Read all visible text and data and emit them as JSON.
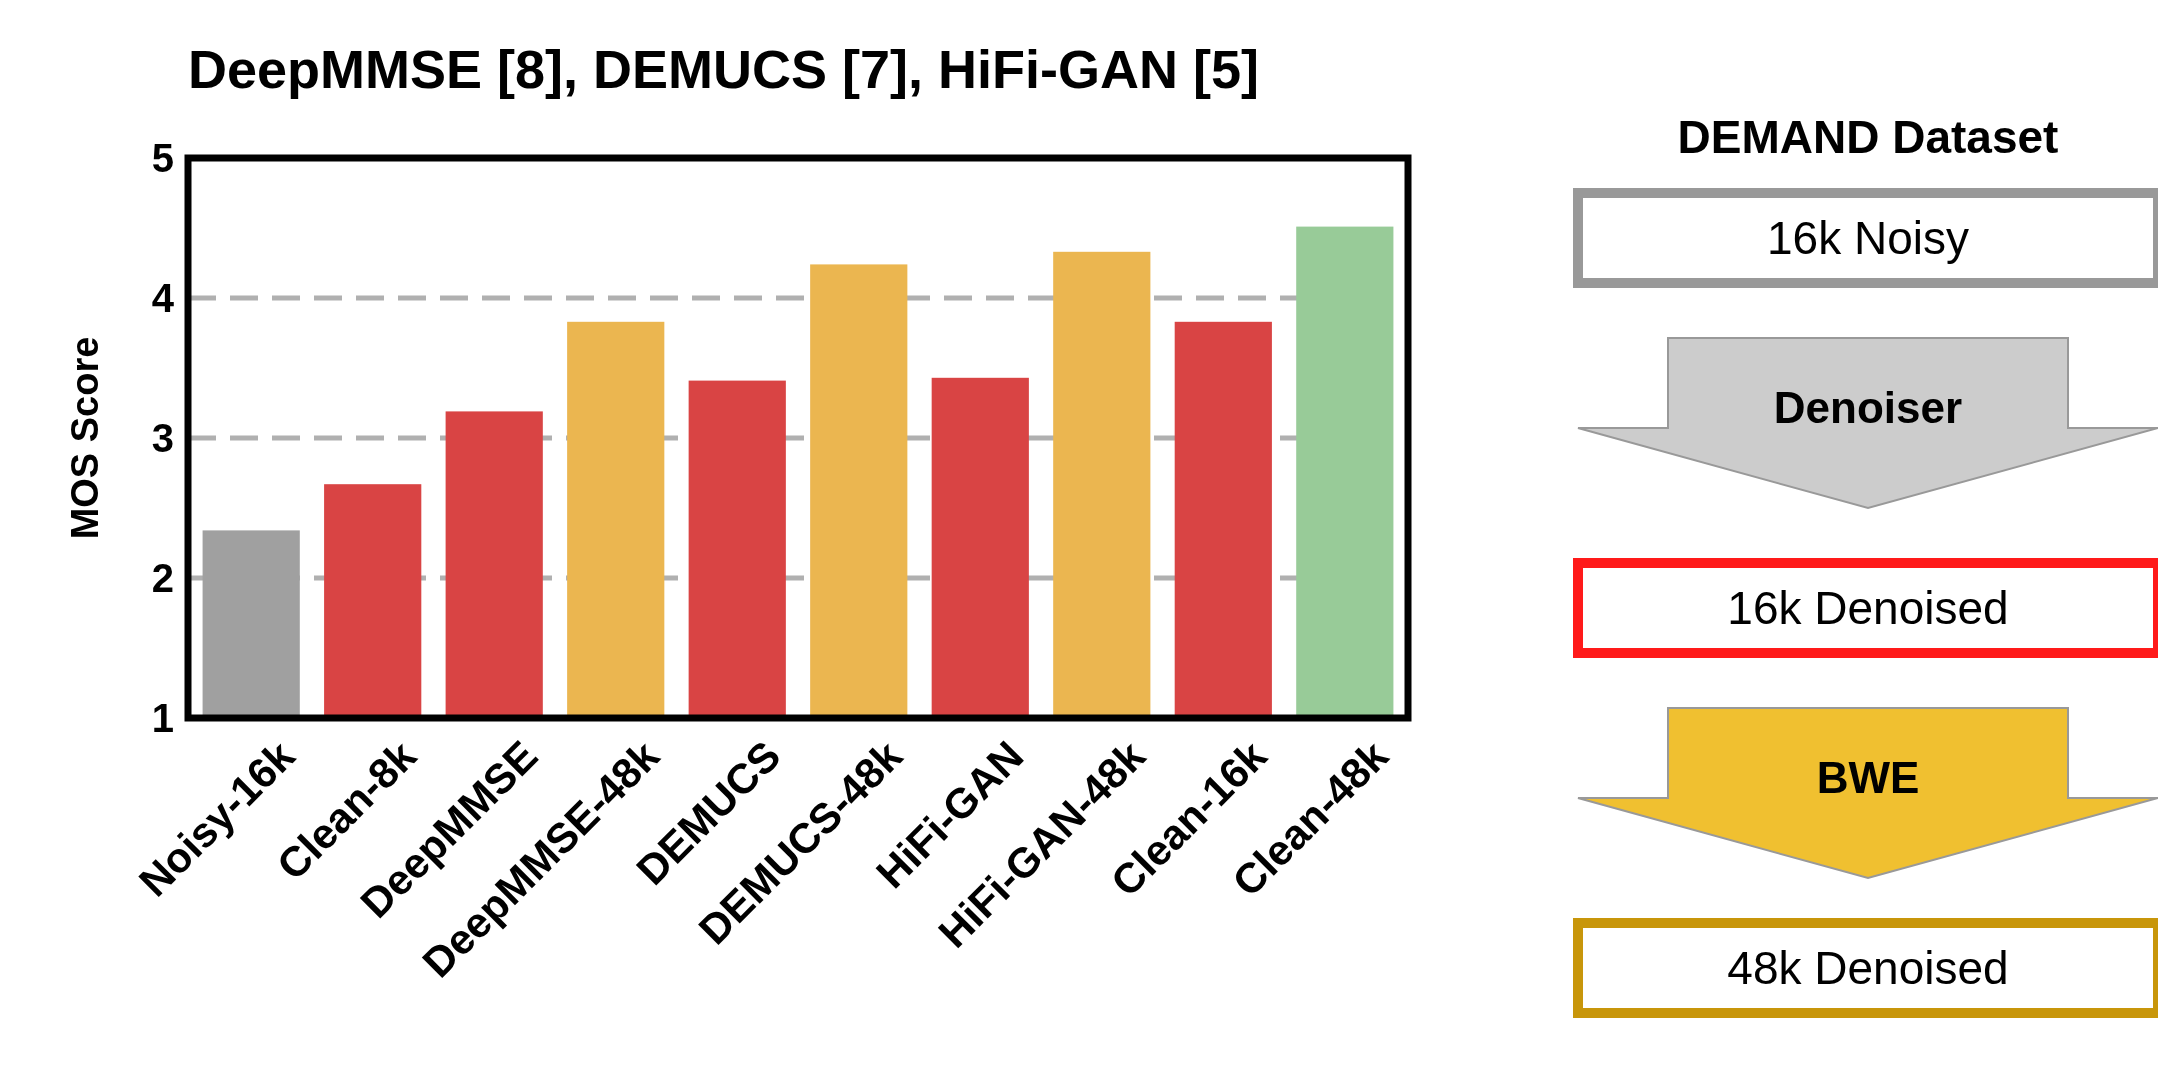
{
  "chart_data": [
    {
      "type": "bar",
      "title": "DeepMMSE [8], DEMUCS [7], HiFi-GAN [5]",
      "ylabel": "MOS Score",
      "categories": [
        "Noisy-16k",
        "Clean-8k",
        "DeepMMSE",
        "DeepMMSE-48k",
        "DEMUCS",
        "DEMUCS-48k",
        "HiFi-GAN",
        "HiFi-GAN-48k",
        "Clean-16k",
        "Clean-48k"
      ],
      "values": [
        2.34,
        2.67,
        3.19,
        3.83,
        3.41,
        4.24,
        3.43,
        4.33,
        3.83,
        4.51
      ],
      "colors": [
        "#a0a0a0",
        "#d94444",
        "#d94444",
        "#ebb650",
        "#d94444",
        "#ebb650",
        "#d94444",
        "#ebb650",
        "#d94444",
        "#98cb98"
      ],
      "ylim": [
        1,
        5
      ],
      "yticks": [
        1,
        2,
        3,
        4,
        5
      ],
      "grid": "y"
    },
    {
      "type": "other",
      "title": "DEMAND Dataset",
      "annotations": [
        "16k Noisy",
        "Denoiser",
        "16k Denoised",
        "BWE",
        "48k Denoised"
      ]
    }
  ]
}
